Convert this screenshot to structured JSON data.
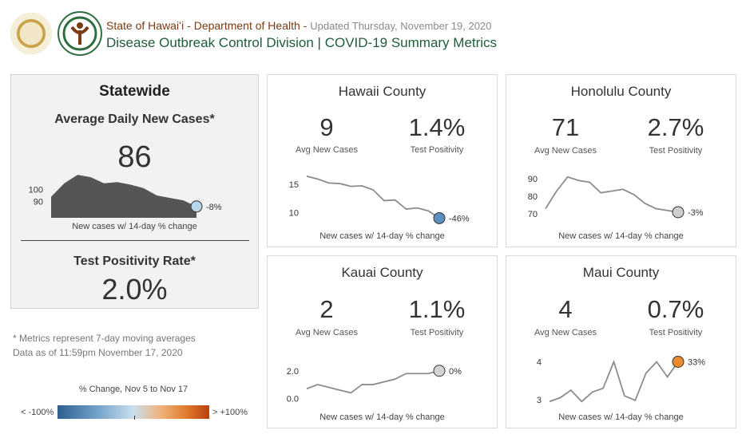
{
  "header": {
    "agency": "State of Hawaiʻi - Department of Health -",
    "updated": "Updated Thursday, November 19, 2020",
    "subtitle": "Disease Outbreak Control Division | COVID-19 Summary Metrics"
  },
  "statewide": {
    "title": "Statewide",
    "cases_label": "Average Daily New Cases*",
    "cases_value": "86",
    "chart_caption": "New cases w/ 14-day % change",
    "pct_change": "-8%",
    "positivity_label": "Test Positivity Rate*",
    "positivity_value": "2.0%"
  },
  "counties": {
    "hawaii": {
      "title": "Hawaii County",
      "cases": "9",
      "positivity": "1.4%",
      "cases_label": "Avg New Cases",
      "positivity_label": "Test Positivity",
      "caption": "New cases w/ 14-day % change",
      "pct_change": "-46%"
    },
    "honolulu": {
      "title": "Honolulu County",
      "cases": "71",
      "positivity": "2.7%",
      "cases_label": "Avg New Cases",
      "positivity_label": "Test Positivity",
      "caption": "New cases w/ 14-day % change",
      "pct_change": "-3%"
    },
    "kauai": {
      "title": "Kauai County",
      "cases": "2",
      "positivity": "1.1%",
      "cases_label": "Avg New Cases",
      "positivity_label": "Test Positivity",
      "caption": "New cases w/ 14-day % change",
      "pct_change": "0%"
    },
    "maui": {
      "title": "Maui County",
      "cases": "4",
      "positivity": "0.7%",
      "cases_label": "Avg New Cases",
      "positivity_label": "Test Positivity",
      "caption": "New cases w/ 14-day % change",
      "pct_change": "33%"
    }
  },
  "notes": {
    "line1": "* Metrics represent 7-day moving averages",
    "line2": "Data as of 11:59pm November 17, 2020"
  },
  "legend": {
    "title": "% Change, Nov 5 to Nov 17",
    "min_label": "< -100%",
    "max_label": "> +100%"
  },
  "colors": {
    "negative_strong": "#2e5f8f",
    "negative_light": "#b9d6ea",
    "neutral": "#d9d9d9",
    "positive_strong": "#b8400f",
    "statewide_area": "#555555",
    "line": "#8c8c8c",
    "marker_statewide": "#b9d6ea",
    "marker_hawaii": "#5a8fbf",
    "marker_honolulu": "#d0d0d0",
    "marker_kauai": "#d4d4d4",
    "marker_maui": "#ee8a2c"
  },
  "chart_data": [
    {
      "type": "area",
      "panel": "statewide",
      "yticks": [
        90,
        100
      ],
      "ylim": [
        78,
        116
      ],
      "values": [
        94,
        105,
        112,
        110,
        105,
        106,
        104,
        101,
        95,
        93,
        91,
        86
      ],
      "marker_color": "#b9d6ea"
    },
    {
      "type": "line",
      "panel": "hawaii",
      "yticks": [
        10,
        15
      ],
      "ylim": [
        8.5,
        17.5
      ],
      "values": [
        16.4,
        15.9,
        15.2,
        15.1,
        14.6,
        14.7,
        14.0,
        12.1,
        12.2,
        10.6,
        10.8,
        10.3,
        9
      ],
      "marker_color": "#5a8fbf"
    },
    {
      "type": "line",
      "panel": "honolulu",
      "yticks": [
        70,
        80,
        90
      ],
      "ylim": [
        66,
        95
      ],
      "values": [
        73,
        83,
        91,
        89,
        88,
        82,
        83,
        84,
        81,
        76,
        73,
        72,
        71
      ],
      "marker_color": "#d0d0d0"
    },
    {
      "type": "line",
      "panel": "kauai",
      "yticks": [
        "0.0",
        "2.0"
      ],
      "ylim": [
        -0.5,
        3.2
      ],
      "values": [
        0.7,
        1.0,
        0.8,
        0.6,
        0.4,
        1.0,
        1.0,
        1.2,
        1.4,
        1.8,
        1.8,
        1.8,
        2.0
      ],
      "marker_color": "#d4d4d4"
    },
    {
      "type": "line",
      "panel": "maui",
      "yticks": [
        3,
        4
      ],
      "ylim": [
        2.85,
        4.2
      ],
      "values": [
        2.95,
        3.05,
        3.25,
        2.95,
        3.2,
        3.3,
        4.0,
        3.1,
        2.98,
        3.7,
        4.0,
        3.6,
        4.0
      ],
      "marker_color": "#ee8a2c"
    }
  ]
}
